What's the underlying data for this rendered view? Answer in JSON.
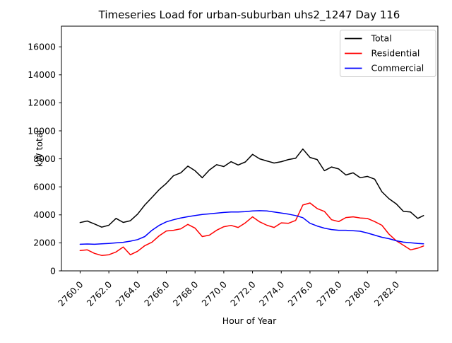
{
  "chart_data": {
    "type": "line",
    "title": "Timeseries Load for urban-suburban uhs2_1247  Day 116",
    "xlabel": "Hour of Year",
    "ylabel": "kW total",
    "xlim": [
      2758.7,
      2784.9
    ],
    "ylim": [
      0,
      17475
    ],
    "grid": false,
    "legend_position": "upper right",
    "x_tick_rotation": 45,
    "x_ticks": [
      "2760.0",
      "2762.0",
      "2764.0",
      "2766.0",
      "2768.0",
      "2770.0",
      "2772.0",
      "2774.0",
      "2776.0",
      "2778.0",
      "2780.0",
      "2782.0"
    ],
    "y_ticks": [
      "0",
      "2000",
      "4000",
      "6000",
      "8000",
      "10000",
      "12000",
      "14000",
      "16000"
    ],
    "x": [
      2760.0,
      2760.5,
      2761.0,
      2761.5,
      2762.0,
      2762.5,
      2763.0,
      2763.5,
      2764.0,
      2764.5,
      2765.0,
      2765.5,
      2766.0,
      2766.5,
      2767.0,
      2767.5,
      2768.0,
      2768.5,
      2769.0,
      2769.5,
      2770.0,
      2770.5,
      2771.0,
      2771.5,
      2772.0,
      2772.5,
      2773.0,
      2773.5,
      2774.0,
      2774.5,
      2775.0,
      2775.5,
      2776.0,
      2776.5,
      2777.0,
      2777.5,
      2778.0,
      2778.5,
      2779.0,
      2779.5,
      2780.0,
      2780.5,
      2781.0,
      2781.5,
      2782.0,
      2782.5,
      2783.0,
      2783.5,
      2783.9
    ],
    "series": [
      {
        "name": "Total",
        "color": "#000000",
        "values": [
          3450,
          3560,
          3350,
          3120,
          3260,
          3750,
          3460,
          3580,
          4050,
          4700,
          5250,
          5800,
          6250,
          6800,
          7000,
          7480,
          7150,
          6650,
          7200,
          7580,
          7450,
          7800,
          7560,
          7780,
          8320,
          8000,
          7850,
          7700,
          7800,
          7950,
          8040,
          8700,
          8100,
          7950,
          7150,
          7420,
          7280,
          6850,
          7000,
          6650,
          6750,
          6550,
          5650,
          5150,
          4790,
          4250,
          4200,
          3750,
          3950
        ]
      },
      {
        "name": "Residential",
        "color": "#ff0000",
        "values": [
          1450,
          1500,
          1250,
          1100,
          1150,
          1350,
          1700,
          1150,
          1400,
          1800,
          2050,
          2500,
          2850,
          2900,
          3000,
          3320,
          3050,
          2450,
          2550,
          2900,
          3150,
          3250,
          3100,
          3430,
          3860,
          3500,
          3260,
          3100,
          3430,
          3400,
          3600,
          4700,
          4850,
          4450,
          4250,
          3650,
          3520,
          3810,
          3860,
          3780,
          3740,
          3520,
          3260,
          2620,
          2150,
          1830,
          1500,
          1620,
          1780
        ]
      },
      {
        "name": "Commercial",
        "color": "#0000ff",
        "values": [
          1900,
          1920,
          1900,
          1930,
          1960,
          2000,
          2040,
          2120,
          2230,
          2450,
          2900,
          3250,
          3500,
          3650,
          3780,
          3870,
          3950,
          4030,
          4070,
          4120,
          4170,
          4200,
          4200,
          4230,
          4280,
          4300,
          4280,
          4200,
          4130,
          4050,
          3950,
          3800,
          3400,
          3200,
          3050,
          2950,
          2900,
          2900,
          2870,
          2830,
          2700,
          2550,
          2400,
          2300,
          2150,
          2050,
          2010,
          1960,
          1930
        ]
      }
    ]
  }
}
